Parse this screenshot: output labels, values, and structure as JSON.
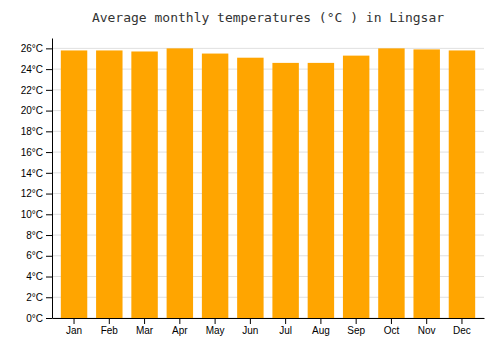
{
  "chart_data": {
    "type": "bar",
    "title": "Average monthly temperatures (°C ) in Lingsar",
    "categories": [
      "Jan",
      "Feb",
      "Mar",
      "Apr",
      "May",
      "Jun",
      "Jul",
      "Aug",
      "Sep",
      "Oct",
      "Nov",
      "Dec"
    ],
    "values": [
      25.8,
      25.8,
      25.7,
      26.0,
      25.5,
      25.1,
      24.6,
      24.6,
      25.3,
      26.0,
      25.9,
      25.8
    ],
    "color": "#FFA500",
    "ylim": [
      0,
      27
    ],
    "yticks": [
      {
        "value": 0,
        "label": "0°C"
      },
      {
        "value": 2,
        "label": "2°C"
      },
      {
        "value": 4,
        "label": "4°C"
      },
      {
        "value": 6,
        "label": "6°C"
      },
      {
        "value": 8,
        "label": "8°C"
      },
      {
        "value": 10,
        "label": "10°C"
      },
      {
        "value": 12,
        "label": "12°C"
      },
      {
        "value": 14,
        "label": "14°C"
      },
      {
        "value": 16,
        "label": "16°C"
      },
      {
        "value": 18,
        "label": "18°C"
      },
      {
        "value": 20,
        "label": "20°C"
      },
      {
        "value": 22,
        "label": "22°C"
      },
      {
        "value": 24,
        "label": "24°C"
      },
      {
        "value": 26,
        "label": "26°C"
      }
    ],
    "grid": true
  }
}
